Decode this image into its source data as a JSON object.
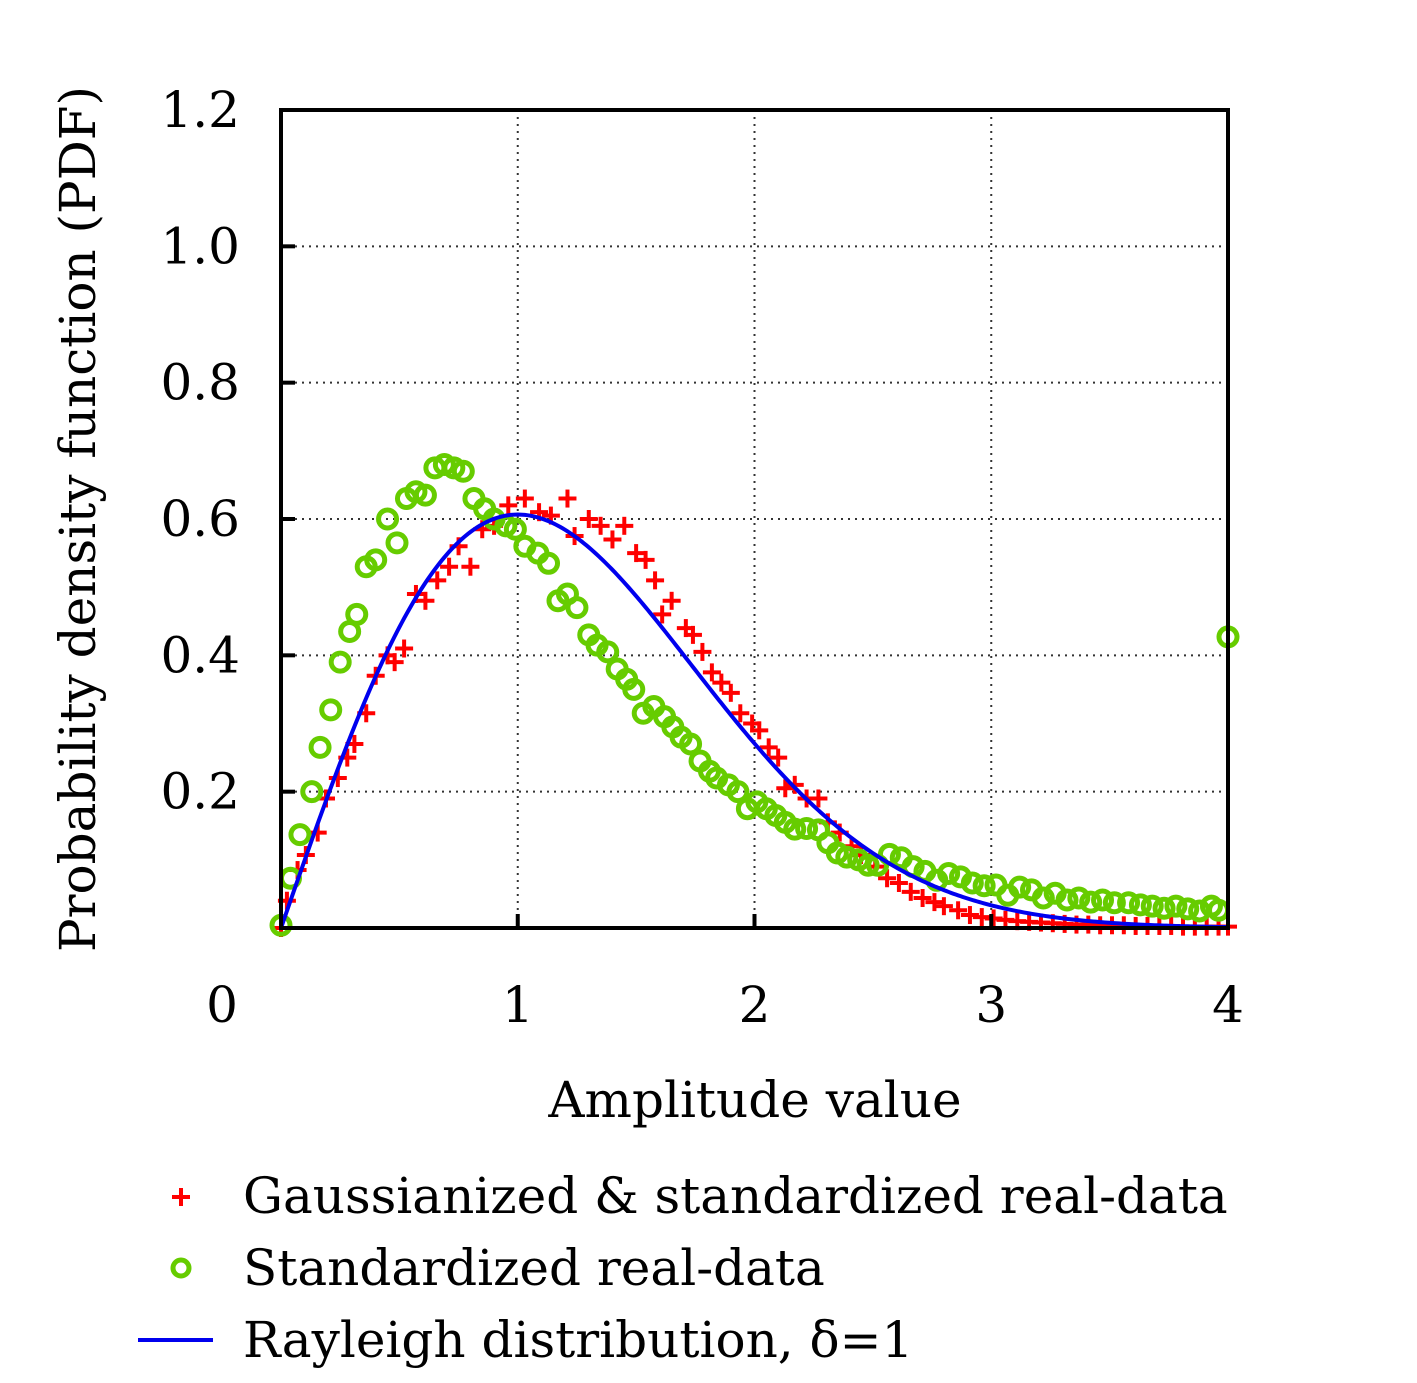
{
  "chart_data": {
    "type": "scatter",
    "title": "",
    "xlabel": "Amplitude value",
    "ylabel": "Probability density function (PDF)",
    "xlim": [
      0,
      4
    ],
    "ylim": [
      0,
      1.2
    ],
    "grid": true,
    "x_ticks": [
      {
        "value": 0,
        "label": "0"
      },
      {
        "value": 1,
        "label": "1"
      },
      {
        "value": 2,
        "label": "2"
      },
      {
        "value": 3,
        "label": "3"
      },
      {
        "value": 4,
        "label": "4"
      }
    ],
    "y_ticks": [
      {
        "value": 0.2,
        "label": "0.2"
      },
      {
        "value": 0.4,
        "label": "0.4"
      },
      {
        "value": 0.6,
        "label": "0.6"
      },
      {
        "value": 0.8,
        "label": "0.8"
      },
      {
        "value": 1.0,
        "label": "1.0"
      },
      {
        "value": 1.2,
        "label": "1.2"
      }
    ],
    "legend_position": "bottom",
    "series": [
      {
        "name": "Gaussianized & standardized real-data",
        "marker": "plus",
        "color": "#ff0000",
        "x": [
          0,
          0.025,
          0.07,
          0.105,
          0.155,
          0.19,
          0.24,
          0.28,
          0.31,
          0.36,
          0.4,
          0.45,
          0.48,
          0.52,
          0.57,
          0.61,
          0.66,
          0.71,
          0.75,
          0.8,
          0.85,
          0.9,
          0.96,
          1.03,
          1.09,
          1.14,
          1.21,
          1.24,
          1.3,
          1.35,
          1.4,
          1.45,
          1.5,
          1.54,
          1.58,
          1.61,
          1.65,
          1.71,
          1.74,
          1.78,
          1.82,
          1.86,
          1.9,
          1.94,
          1.99,
          2.02,
          2.06,
          2.1,
          2.13,
          2.17,
          2.22,
          2.27,
          2.31,
          2.36,
          2.41,
          2.45,
          2.51,
          2.56,
          2.61,
          2.66,
          2.71,
          2.76,
          2.8,
          2.86,
          2.91,
          2.96,
          3.01,
          3.06,
          3.11,
          3.16,
          3.21,
          3.26,
          3.31,
          3.36,
          3.41,
          3.46,
          3.51,
          3.56,
          3.61,
          3.66,
          3.71,
          3.76,
          3.81,
          3.86,
          3.91,
          3.96,
          4.0
        ],
        "y": [
          0,
          0.04,
          0.085,
          0.107,
          0.14,
          0.19,
          0.22,
          0.25,
          0.27,
          0.315,
          0.37,
          0.4,
          0.39,
          0.41,
          0.49,
          0.48,
          0.51,
          0.53,
          0.56,
          0.53,
          0.585,
          0.59,
          0.62,
          0.63,
          0.61,
          0.605,
          0.63,
          0.575,
          0.6,
          0.59,
          0.57,
          0.59,
          0.55,
          0.54,
          0.51,
          0.46,
          0.48,
          0.44,
          0.43,
          0.405,
          0.375,
          0.36,
          0.345,
          0.315,
          0.3,
          0.29,
          0.265,
          0.25,
          0.205,
          0.21,
          0.19,
          0.19,
          0.155,
          0.14,
          0.12,
          0.107,
          0.09,
          0.073,
          0.066,
          0.053,
          0.044,
          0.038,
          0.032,
          0.026,
          0.019,
          0.016,
          0.014,
          0.012,
          0.01,
          0.009,
          0.008,
          0.007,
          0.006,
          0.005,
          0.005,
          0.004,
          0.004,
          0.004,
          0.003,
          0.003,
          0.003,
          0.003,
          0.002,
          0.002,
          0.002,
          0.002,
          0.002
        ]
      },
      {
        "name": "Standardized real-data",
        "marker": "circle",
        "color": "#66cc00",
        "x": [
          0,
          0.04,
          0.08,
          0.13,
          0.165,
          0.21,
          0.25,
          0.29,
          0.32,
          0.36,
          0.4,
          0.45,
          0.49,
          0.53,
          0.57,
          0.61,
          0.65,
          0.69,
          0.73,
          0.77,
          0.815,
          0.86,
          0.9,
          0.95,
          0.99,
          1.03,
          1.085,
          1.13,
          1.17,
          1.21,
          1.25,
          1.3,
          1.335,
          1.38,
          1.42,
          1.46,
          1.49,
          1.53,
          1.575,
          1.62,
          1.655,
          1.69,
          1.73,
          1.77,
          1.81,
          1.84,
          1.89,
          1.93,
          1.97,
          2.01,
          2.05,
          2.09,
          2.13,
          2.17,
          2.22,
          2.27,
          2.31,
          2.35,
          2.39,
          2.44,
          2.48,
          2.52,
          2.57,
          2.62,
          2.67,
          2.72,
          2.77,
          2.82,
          2.87,
          2.92,
          2.97,
          3.02,
          3.07,
          3.12,
          3.17,
          3.22,
          3.27,
          3.32,
          3.37,
          3.42,
          3.47,
          3.52,
          3.58,
          3.63,
          3.68,
          3.73,
          3.78,
          3.83,
          3.88,
          3.93,
          3.96,
          4.0
        ],
        "y": [
          0.004,
          0.073,
          0.137,
          0.2,
          0.265,
          0.32,
          0.39,
          0.435,
          0.46,
          0.53,
          0.54,
          0.6,
          0.565,
          0.63,
          0.64,
          0.635,
          0.675,
          0.68,
          0.675,
          0.67,
          0.63,
          0.615,
          0.6,
          0.59,
          0.585,
          0.56,
          0.55,
          0.535,
          0.48,
          0.49,
          0.47,
          0.43,
          0.415,
          0.405,
          0.38,
          0.365,
          0.35,
          0.315,
          0.325,
          0.31,
          0.295,
          0.28,
          0.27,
          0.245,
          0.23,
          0.22,
          0.21,
          0.2,
          0.175,
          0.185,
          0.175,
          0.165,
          0.155,
          0.145,
          0.146,
          0.144,
          0.125,
          0.11,
          0.104,
          0.1,
          0.092,
          0.092,
          0.108,
          0.103,
          0.09,
          0.083,
          0.07,
          0.08,
          0.075,
          0.066,
          0.062,
          0.063,
          0.048,
          0.06,
          0.056,
          0.044,
          0.051,
          0.041,
          0.044,
          0.038,
          0.041,
          0.037,
          0.037,
          0.034,
          0.032,
          0.029,
          0.032,
          0.028,
          0.025,
          0.032,
          0.026,
          0.427
        ]
      },
      {
        "name": "Rayleigh distribution, δ=1",
        "marker": "line",
        "color": "#0000ee",
        "function": "x*exp(-x^2/2)",
        "sigma": 1
      }
    ]
  },
  "legend": {
    "items": [
      {
        "label": "Gaussianized & standardized real-data",
        "symbol": "plus",
        "color": "#ff0000"
      },
      {
        "label": "Standardized real-data",
        "symbol": "circle",
        "color": "#66cc00"
      },
      {
        "label": "Rayleigh distribution, δ=1",
        "symbol": "line",
        "color": "#0000ee"
      }
    ]
  }
}
